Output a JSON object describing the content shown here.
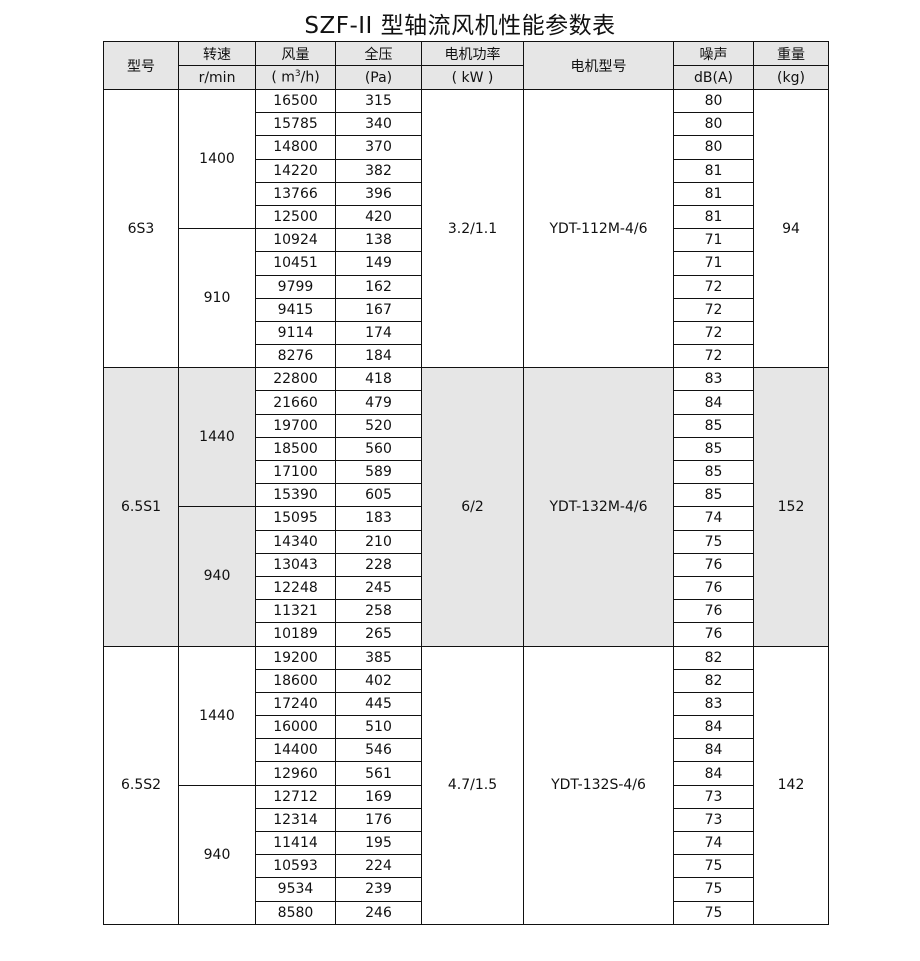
{
  "title": "SZF-II 型轴流风机性能参数表",
  "headers": {
    "model": "型号",
    "speed": "转速",
    "speed_unit": "r/min",
    "flow": "风量",
    "flow_unit_pre": "( m",
    "flow_unit_sup": "3",
    "flow_unit_post": "/h)",
    "pressure": "全压",
    "pressure_unit": "(Pa)",
    "power": "电机功率",
    "power_unit": "( kW )",
    "motor": "电机型号",
    "noise": "噪声",
    "noise_unit": "dB(A)",
    "weight": "重量",
    "weight_unit": "(kg)"
  },
  "colors": {
    "shaded_group_background": "#e6e6e6"
  },
  "groups": [
    {
      "model": "6S3",
      "power": "3.2/1.1",
      "motor": "YDT-112M-4/6",
      "weight": "94",
      "shaded": false,
      "speeds": [
        {
          "rpm": "1400",
          "rows": [
            [
              "16500",
              "315",
              "80"
            ],
            [
              "15785",
              "340",
              "80"
            ],
            [
              "14800",
              "370",
              "80"
            ],
            [
              "14220",
              "382",
              "81"
            ],
            [
              "13766",
              "396",
              "81"
            ],
            [
              "12500",
              "420",
              "81"
            ]
          ]
        },
        {
          "rpm": "910",
          "rows": [
            [
              "10924",
              "138",
              "71"
            ],
            [
              "10451",
              "149",
              "71"
            ],
            [
              "9799",
              "162",
              "72"
            ],
            [
              "9415",
              "167",
              "72"
            ],
            [
              "9114",
              "174",
              "72"
            ],
            [
              "8276",
              "184",
              "72"
            ]
          ]
        }
      ]
    },
    {
      "model": "6.5S1",
      "power": "6/2",
      "motor": "YDT-132M-4/6",
      "weight": "152",
      "shaded": true,
      "speeds": [
        {
          "rpm": "1440",
          "rows": [
            [
              "22800",
              "418",
              "83"
            ],
            [
              "21660",
              "479",
              "84"
            ],
            [
              "19700",
              "520",
              "85"
            ],
            [
              "18500",
              "560",
              "85"
            ],
            [
              "17100",
              "589",
              "85"
            ],
            [
              "15390",
              "605",
              "85"
            ]
          ]
        },
        {
          "rpm": "940",
          "rows": [
            [
              "15095",
              "183",
              "74"
            ],
            [
              "14340",
              "210",
              "75"
            ],
            [
              "13043",
              "228",
              "76"
            ],
            [
              "12248",
              "245",
              "76"
            ],
            [
              "11321",
              "258",
              "76"
            ],
            [
              "10189",
              "265",
              "76"
            ]
          ]
        }
      ]
    },
    {
      "model": "6.5S2",
      "power": "4.7/1.5",
      "motor": "YDT-132S-4/6",
      "weight": "142",
      "shaded": false,
      "speeds": [
        {
          "rpm": "1440",
          "rows": [
            [
              "19200",
              "385",
              "82"
            ],
            [
              "18600",
              "402",
              "82"
            ],
            [
              "17240",
              "445",
              "83"
            ],
            [
              "16000",
              "510",
              "84"
            ],
            [
              "14400",
              "546",
              "84"
            ],
            [
              "12960",
              "561",
              "84"
            ]
          ]
        },
        {
          "rpm": "940",
          "rows": [
            [
              "12712",
              "169",
              "73"
            ],
            [
              "12314",
              "176",
              "73"
            ],
            [
              "11414",
              "195",
              "74"
            ],
            [
              "10593",
              "224",
              "75"
            ],
            [
              "9534",
              "239",
              "75"
            ],
            [
              "8580",
              "246",
              "75"
            ]
          ]
        }
      ]
    }
  ]
}
